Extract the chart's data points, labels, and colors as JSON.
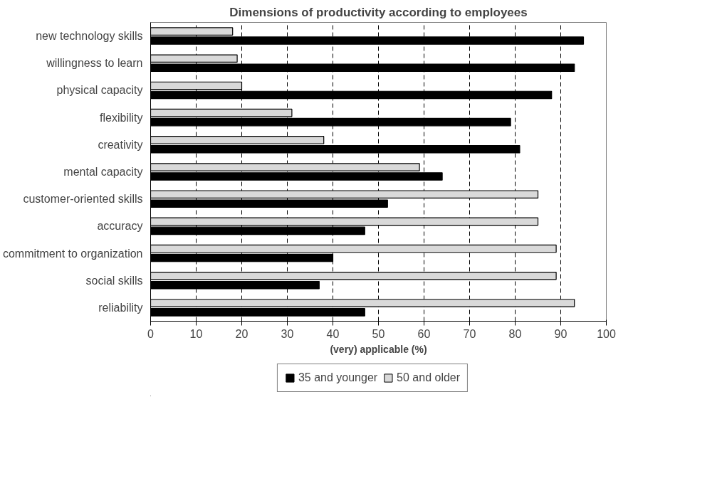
{
  "chart_data": {
    "type": "bar",
    "orientation": "horizontal",
    "title": "Dimensions of productivity according to employees",
    "xlabel": "(very) applicable (%)",
    "categories": [
      "new technology skills",
      "willingness to learn",
      "physical capacity",
      "flexibility",
      "creativity",
      "mental capacity",
      "customer-oriented skills",
      "accuracy",
      "commitment to organization",
      "social skills",
      "reliability"
    ],
    "series": [
      {
        "name": "35 and younger",
        "color": "#000000",
        "values": [
          95,
          93,
          88,
          79,
          81,
          64,
          52,
          47,
          40,
          37,
          47
        ]
      },
      {
        "name": "50 and older",
        "color": "#d9d9d9",
        "values": [
          18,
          19,
          20,
          31,
          38,
          59,
          85,
          85,
          89,
          89,
          93
        ]
      }
    ],
    "xlim": [
      0,
      100
    ],
    "xticks": [
      0,
      10,
      20,
      30,
      40,
      50,
      60,
      70,
      80,
      90,
      100
    ],
    "grid": "x",
    "legend": "bottom"
  }
}
